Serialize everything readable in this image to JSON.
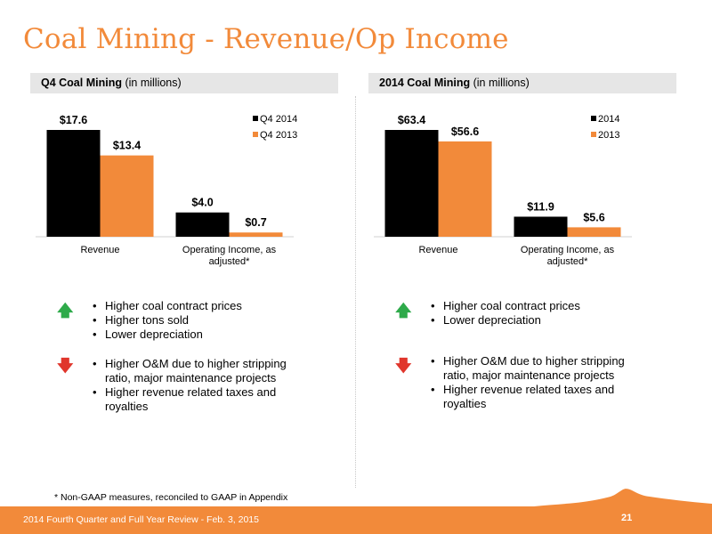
{
  "slide": {
    "title": "Coal Mining - Revenue/Op Income",
    "footnote": "* Non-GAAP measures, reconciled to GAAP in Appendix",
    "footer_text": "2014 Fourth Quarter and Full Year Review - Feb. 3, 2015",
    "page_number": "21",
    "brand_color": "#F28A3A"
  },
  "left_panel": {
    "header_bold": "Q4 Coal Mining",
    "header_note": "(in millions)",
    "positives": [
      "Higher coal contract prices",
      "Higher tons sold",
      "Lower depreciation"
    ],
    "negatives": [
      "Higher O&M due to higher stripping ratio, major maintenance projects",
      "Higher revenue related taxes and royalties"
    ]
  },
  "right_panel": {
    "header_bold": "2014 Coal Mining",
    "header_note": "(in millions)",
    "positives": [
      "Higher coal contract prices",
      "Lower depreciation"
    ],
    "negatives": [
      "Higher O&M due to higher stripping ratio, major maintenance projects",
      "Higher revenue related taxes and royalties"
    ]
  },
  "icons": {
    "up": "arrow-up-icon",
    "up_glyph": "🡅",
    "down": "arrow-down-icon",
    "down_glyph": "🡇",
    "up_color": "#2EAA4A",
    "down_color": "#E0362C"
  },
  "chart_data": [
    {
      "type": "bar",
      "categories": [
        "Revenue",
        "Operating Income, as adjusted*"
      ],
      "series": [
        {
          "name": "Q4 2014",
          "values": [
            17.6,
            4.0
          ],
          "labels": [
            "$17.6",
            "$4.0"
          ],
          "color": "#000000"
        },
        {
          "name": "Q4 2013",
          "values": [
            13.4,
            0.7
          ],
          "labels": [
            "$13.4",
            "$0.7"
          ],
          "color": "#F28A3A"
        }
      ],
      "ylim": [
        0,
        17.6
      ],
      "legend": "top-right",
      "grid": false
    },
    {
      "type": "bar",
      "categories": [
        "Revenue",
        "Operating Income, as adjusted*"
      ],
      "series": [
        {
          "name": "2014",
          "values": [
            63.4,
            11.9
          ],
          "labels": [
            "$63.4",
            "$11.9"
          ],
          "color": "#000000"
        },
        {
          "name": "2013",
          "values": [
            56.6,
            5.6
          ],
          "labels": [
            "$56.6",
            "$5.6"
          ],
          "color": "#F28A3A"
        }
      ],
      "ylim": [
        0,
        63.4
      ],
      "legend": "top-right",
      "grid": false
    }
  ]
}
